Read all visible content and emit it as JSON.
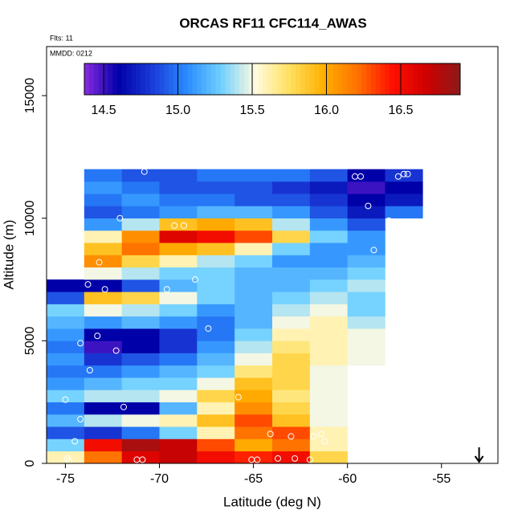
{
  "chart_data": {
    "type": "heatmap",
    "title": "ORCAS RF11 CFC114_AWAS",
    "flights_label": "Flts: 11",
    "date_label": "MMDD: 0212",
    "x_label": "Latitude (deg N)",
    "y_label": "Altitude (m)",
    "xlim": [
      -76,
      -52
    ],
    "ylim": [
      0,
      17000
    ],
    "xticks": [
      -75,
      -70,
      -65,
      -60,
      -55
    ],
    "yticks": [
      0,
      5000,
      10000,
      15000
    ],
    "x_edges": [
      -76,
      -74,
      -72,
      -70,
      -68,
      -66,
      -64,
      -62,
      -60,
      -58,
      -56
    ],
    "y_edges": [
      0,
      500,
      1000,
      1500,
      2000,
      2500,
      3000,
      3500,
      4000,
      4500,
      5000,
      5500,
      6000,
      6500,
      7000,
      7500,
      8000,
      8500,
      9000,
      9500,
      10000,
      10500,
      11000,
      11500,
      12000
    ],
    "z": [
      [
        15.6,
        16.2,
        16.6,
        16.7,
        16.5,
        16.4,
        16.5,
        15.8,
        null,
        null
      ],
      [
        15.3,
        16.5,
        16.8,
        16.7,
        16.3,
        16.0,
        16.2,
        15.6,
        null,
        null
      ],
      [
        14.9,
        14.8,
        15.0,
        15.3,
        15.6,
        16.2,
        16.3,
        15.6,
        null,
        null
      ],
      [
        15.2,
        15.4,
        15.5,
        15.6,
        15.9,
        16.3,
        15.9,
        15.5,
        null,
        null
      ],
      [
        15.0,
        14.6,
        14.6,
        15.2,
        15.6,
        16.1,
        15.8,
        15.5,
        null,
        null
      ],
      [
        15.3,
        15.4,
        15.4,
        15.5,
        15.8,
        16.0,
        15.7,
        15.5,
        null,
        null
      ],
      [
        15.1,
        15.2,
        15.3,
        15.3,
        15.5,
        15.9,
        15.8,
        15.5,
        null,
        null
      ],
      [
        15.0,
        15.0,
        15.1,
        15.2,
        15.3,
        15.7,
        15.8,
        15.5,
        null,
        null
      ],
      [
        15.1,
        14.8,
        14.9,
        15.0,
        15.2,
        15.5,
        15.8,
        15.6,
        15.5,
        null
      ],
      [
        15.0,
        14.5,
        14.6,
        14.8,
        15.1,
        15.4,
        15.7,
        15.6,
        15.5,
        null
      ],
      [
        15.1,
        14.6,
        14.6,
        14.8,
        15.0,
        15.3,
        15.6,
        15.6,
        15.5,
        null
      ],
      [
        15.2,
        15.1,
        15.2,
        15.1,
        15.0,
        15.2,
        15.5,
        15.6,
        15.4,
        null
      ],
      [
        15.3,
        15.5,
        15.4,
        15.3,
        15.1,
        15.2,
        15.4,
        15.5,
        15.3,
        null
      ],
      [
        14.9,
        15.9,
        15.8,
        15.5,
        15.3,
        15.2,
        15.3,
        15.4,
        15.3,
        null
      ],
      [
        14.6,
        14.6,
        14.9,
        15.2,
        15.3,
        15.2,
        15.2,
        15.3,
        15.4,
        null
      ],
      [
        null,
        15.5,
        15.4,
        15.3,
        15.3,
        15.2,
        15.2,
        15.2,
        15.3,
        null
      ],
      [
        null,
        16.1,
        15.8,
        15.6,
        15.4,
        15.3,
        15.1,
        15.1,
        15.2,
        null
      ],
      [
        null,
        15.9,
        16.2,
        16.0,
        15.9,
        15.6,
        15.3,
        15.1,
        15.1,
        null
      ],
      [
        null,
        15.6,
        16.1,
        16.6,
        16.5,
        16.3,
        15.8,
        15.3,
        15.1,
        null
      ],
      [
        null,
        15.1,
        15.4,
        15.9,
        16.0,
        15.9,
        15.4,
        15.1,
        14.9,
        null
      ],
      [
        null,
        14.9,
        15.0,
        15.1,
        15.2,
        15.2,
        15.1,
        14.9,
        14.7,
        15.0
      ],
      [
        null,
        15.0,
        15.1,
        15.0,
        15.0,
        14.9,
        14.9,
        14.8,
        14.6,
        14.7
      ],
      [
        null,
        15.1,
        15.0,
        14.9,
        14.9,
        14.9,
        14.8,
        14.7,
        14.5,
        14.6
      ],
      [
        null,
        15.0,
        14.9,
        14.9,
        15.0,
        15.0,
        15.0,
        14.9,
        14.6,
        14.8
      ]
    ],
    "zlim": [
      14.37,
      16.9
    ],
    "zticks": [
      14.5,
      {
        "value": 15,
        "label": "15.0"
      },
      15.5,
      {
        "value": 16,
        "label": "16.0"
      },
      16.5
    ],
    "colors": [
      "#8a2be2",
      "#0000a8",
      "#1a3cd8",
      "#2a8cff",
      "#70d0ff",
      "#fffbe0",
      "#ffe060",
      "#ffb000",
      "#ff7000",
      "#ff1000",
      "#d00000",
      "#8b1a1a"
    ],
    "points": {
      "color": "#ffffff",
      "x": [
        -74.9,
        -74.8,
        -74.5,
        -74.2,
        -75,
        -74.2,
        -73.7,
        -73.3,
        -72.3,
        -71.9,
        -71.2,
        -70.9,
        -73.8,
        -73.2,
        -72.9,
        -72.1,
        -69.6,
        -69.2,
        -68.7,
        -68.1,
        -67.4,
        -65.8,
        -64.1,
        -63,
        -62.8,
        -63.7,
        -65.1,
        -64.8,
        -61.8,
        -61.4,
        -61.2,
        -62,
        -70.8,
        -59.6,
        -59.3,
        -58.9,
        -57.3,
        -57,
        -56.8,
        -57.8,
        -58.6
      ],
      "y": [
        200,
        100,
        900,
        1800,
        2600,
        4900,
        3800,
        5200,
        4600,
        2300,
        150,
        150,
        7300,
        8200,
        7100,
        10000,
        7100,
        9700,
        9700,
        7500,
        5500,
        2700,
        1200,
        1100,
        200,
        200,
        150,
        150,
        1100,
        1200,
        900,
        150,
        11900,
        11700,
        11700,
        10500,
        11700,
        11800,
        11800,
        9900,
        8700
      ]
    },
    "arrow_x": -53
  }
}
